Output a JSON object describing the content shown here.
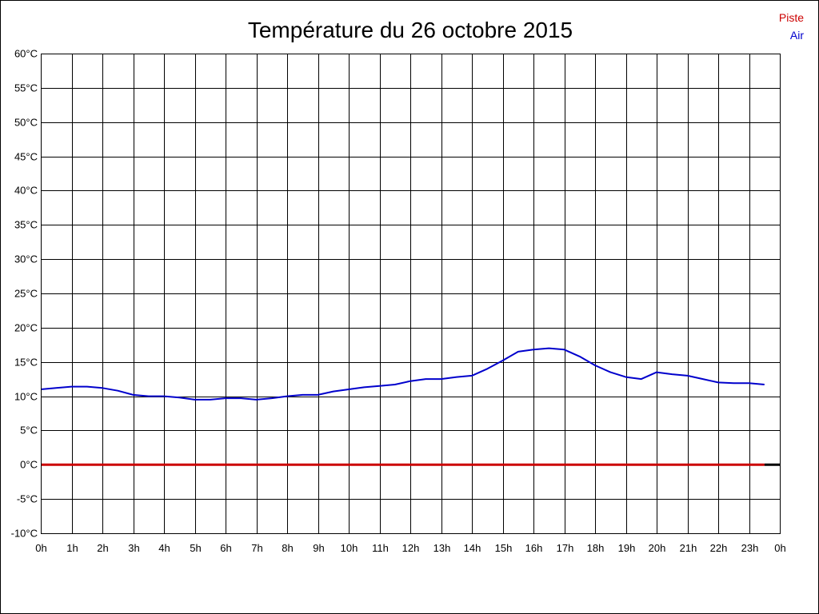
{
  "chart_data": {
    "type": "line",
    "title": "Température du 26 octobre 2015",
    "xlabel": "",
    "ylabel": "",
    "x_range": [
      0,
      24
    ],
    "x_tick_labels": [
      "0h",
      "1h",
      "2h",
      "3h",
      "4h",
      "5h",
      "6h",
      "7h",
      "8h",
      "9h",
      "10h",
      "11h",
      "12h",
      "13h",
      "14h",
      "15h",
      "16h",
      "17h",
      "18h",
      "19h",
      "20h",
      "21h",
      "22h",
      "23h",
      "0h"
    ],
    "ylim": [
      -10,
      60
    ],
    "y_ticks": [
      60,
      55,
      50,
      45,
      40,
      35,
      30,
      25,
      20,
      15,
      10,
      5,
      0,
      -5,
      -10
    ],
    "y_tick_labels": [
      "60°C",
      "55°C",
      "50°C",
      "45°C",
      "40°C",
      "35°C",
      "30°C",
      "25°C",
      "20°C",
      "15°C",
      "10°C",
      "5°C",
      "0°C",
      "-5°C",
      "-10°C"
    ],
    "grid": true,
    "legend_position": "top-right",
    "series": [
      {
        "name": "Piste",
        "color": "#cc0000",
        "x": [
          0,
          23.5
        ],
        "y": [
          0,
          0
        ]
      },
      {
        "name": "Air",
        "color": "#0000cc",
        "x": [
          0,
          0.5,
          1,
          1.5,
          2,
          2.5,
          3,
          3.5,
          4,
          4.5,
          5,
          5.5,
          6,
          6.5,
          7,
          7.5,
          8,
          8.5,
          9,
          9.5,
          10,
          10.5,
          11,
          11.5,
          12,
          12.5,
          13,
          13.5,
          14,
          14.5,
          15,
          15.5,
          16,
          16.5,
          17,
          17.5,
          18,
          18.5,
          19,
          19.5,
          20,
          20.5,
          21,
          21.5,
          22,
          22.5,
          23,
          23.5
        ],
        "y": [
          11.0,
          11.2,
          11.4,
          11.4,
          11.2,
          10.8,
          10.2,
          10.0,
          10.0,
          9.8,
          9.5,
          9.5,
          9.7,
          9.7,
          9.5,
          9.7,
          10.0,
          10.2,
          10.2,
          10.7,
          11.0,
          11.3,
          11.5,
          11.7,
          12.2,
          12.5,
          12.5,
          12.8,
          13.0,
          14.0,
          15.2,
          16.5,
          16.8,
          17.0,
          16.8,
          15.8,
          14.5,
          13.5,
          12.8,
          12.5,
          13.5,
          13.2,
          13.0,
          12.5,
          12.0,
          11.9,
          11.9,
          11.7
        ]
      }
    ]
  }
}
